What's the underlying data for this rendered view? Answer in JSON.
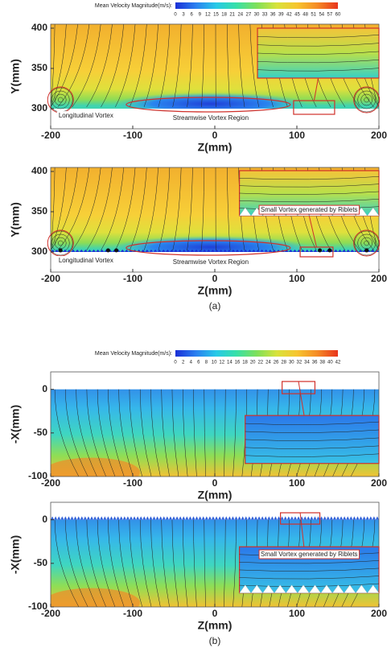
{
  "chart_data": [
    {
      "type": "contour",
      "xlabel": "Z(mm)",
      "ylabel": "Y(mm)",
      "xlim": [
        -200,
        200
      ],
      "ylim": [
        275,
        405
      ],
      "xticks": [
        -200,
        -100,
        0,
        100,
        200
      ],
      "yticks": [
        300,
        350,
        400
      ],
      "colorbar": {
        "label": "Mean Velocity Magnitude(m/s):",
        "range": [
          0,
          60
        ],
        "ticks": [
          0,
          3,
          6,
          9,
          12,
          15,
          18,
          21,
          24,
          27,
          30,
          33,
          36,
          39,
          42,
          45,
          48,
          51,
          54,
          57,
          60
        ],
        "colormap": [
          "#1a2fd6",
          "#2a7ff0",
          "#27c9e8",
          "#37e0a8",
          "#7ee05a",
          "#d8e23a",
          "#f7c52f",
          "#f58a25",
          "#e8341c"
        ]
      },
      "annotations": [
        "Longitudinal Vortex",
        "Streamwise Vortex Region"
      ]
    },
    {
      "type": "contour",
      "xlabel": "Z(mm)",
      "ylabel": "Y(mm)",
      "xlim": [
        -200,
        200
      ],
      "ylim": [
        275,
        405
      ],
      "xticks": [
        -200,
        -100,
        0,
        100,
        200
      ],
      "yticks": [
        300,
        350,
        400
      ],
      "annotations": [
        "Small Vortex generated by Riblets",
        "Longitudinal Vortex",
        "Streamwise Vortex Region"
      ],
      "panel_label": "(a)"
    },
    {
      "type": "contour",
      "xlabel": "Z(mm)",
      "ylabel": "-X(mm)",
      "xlim": [
        -200,
        200
      ],
      "ylim": [
        -100,
        20
      ],
      "xticks": [
        -200,
        -100,
        0,
        100,
        200
      ],
      "yticks": [
        -100,
        -50,
        0
      ],
      "colorbar": {
        "label": "Mean Velocity Magnitude(m/s):",
        "range": [
          0,
          42
        ],
        "ticks": [
          0,
          2,
          4,
          6,
          8,
          10,
          12,
          14,
          16,
          18,
          20,
          22,
          24,
          26,
          28,
          30,
          32,
          34,
          36,
          38,
          40,
          42
        ],
        "colormap": [
          "#1a2fd6",
          "#2a7ff0",
          "#27c9e8",
          "#37e0a8",
          "#7ee05a",
          "#d8e23a",
          "#f7c52f",
          "#f58a25",
          "#e8341c"
        ]
      }
    },
    {
      "type": "contour",
      "xlabel": "Z(mm)",
      "ylabel": "-X(mm)",
      "xlim": [
        -200,
        200
      ],
      "ylim": [
        -100,
        20
      ],
      "xticks": [
        -200,
        -100,
        0,
        100,
        200
      ],
      "yticks": [
        -100,
        -50,
        0
      ],
      "annotations": [
        "Small Vortex generated by Riblets"
      ],
      "panel_label": "(b)"
    }
  ]
}
